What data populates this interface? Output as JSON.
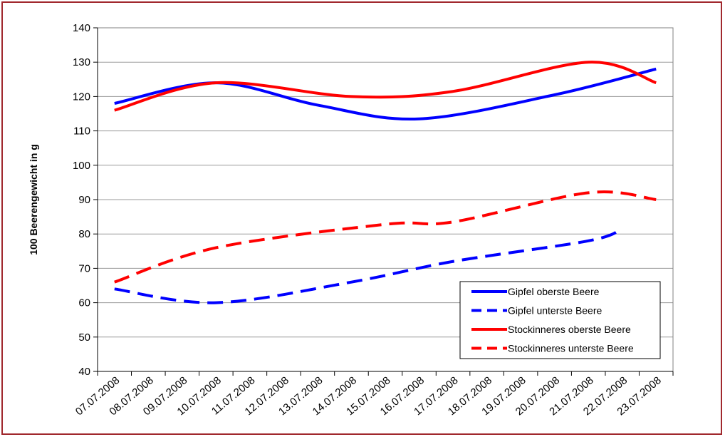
{
  "chart_data": {
    "type": "line",
    "title": "",
    "xlabel": "",
    "ylabel": "100 Beerengewicht in g",
    "ylim": [
      40,
      140
    ],
    "yticks": [
      40,
      50,
      60,
      70,
      80,
      90,
      100,
      110,
      120,
      130,
      140
    ],
    "grid": true,
    "legend_position": "bottom-right",
    "categories": [
      "07.07.2008",
      "08.07.2008",
      "09.07.2008",
      "10.07.2008",
      "11.07.2008",
      "12.07.2008",
      "13.07.2008",
      "14.07.2008",
      "15.07.2008",
      "16.07.2008",
      "17.07.2008",
      "18.07.2008",
      "19.07.2008",
      "20.07.2008",
      "21.07.2008",
      "22.07.2008",
      "23.07.2008"
    ],
    "series": [
      {
        "name": "Gipfel oberste Beere",
        "color": "#0000ff",
        "dash": "solid",
        "x": [
          "07.07.2008",
          "10.07.2008",
          "13.07.2008",
          "16.07.2008",
          "20.07.2008",
          "23.07.2008"
        ],
        "values": [
          118,
          124,
          117.5,
          113.5,
          120.5,
          128
        ]
      },
      {
        "name": "Gipfel unterste Beere",
        "color": "#0000ff",
        "dash": "dashed",
        "x": [
          "07.07.2008",
          "10.07.2008",
          "14.07.2008",
          "17.07.2008",
          "21.07.2008",
          "22.07.2008"
        ],
        "values": [
          64,
          60,
          66,
          72,
          78,
          81.5
        ]
      },
      {
        "name": "Stockinneres oberste Beere",
        "color": "#ff0000",
        "dash": "solid",
        "x": [
          "07.07.2008",
          "10.07.2008",
          "14.07.2008",
          "17.07.2008",
          "21.07.2008",
          "23.07.2008"
        ],
        "values": [
          116,
          124,
          120,
          121.5,
          130,
          124
        ]
      },
      {
        "name": "Stockinneres unterste Beere",
        "color": "#ff0000",
        "dash": "dashed",
        "x": [
          "07.07.2008",
          "10.07.2008",
          "15.07.2008",
          "17.07.2008",
          "21.07.2008",
          "23.07.2008"
        ],
        "values": [
          66,
          76,
          82.8,
          83.5,
          92,
          90
        ]
      }
    ]
  }
}
